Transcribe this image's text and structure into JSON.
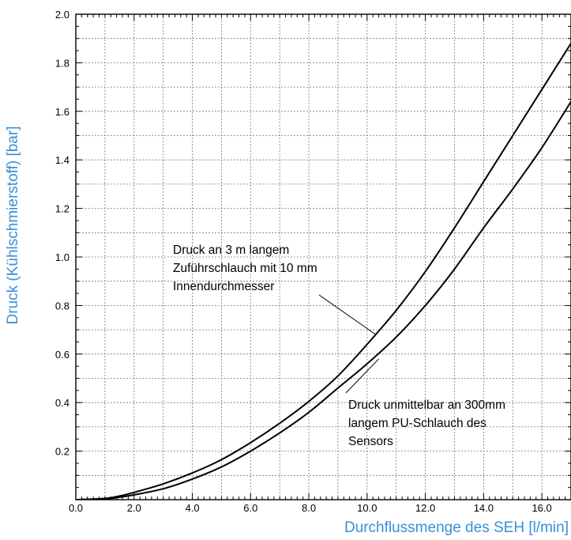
{
  "chart_data": {
    "type": "line",
    "title": "",
    "xlabel": "Durchflussmenge des SEH [l/min]",
    "ylabel": "Druck (Kühlschmierstoff) [bar]",
    "xlim": [
      0,
      17
    ],
    "ylim": [
      0,
      2.0
    ],
    "x_ticks": [
      "0.0",
      "2.0",
      "4.0",
      "6.0",
      "8.0",
      "10.0",
      "12.0",
      "14.0",
      "16.0"
    ],
    "y_ticks": [
      "0.2",
      "0.4",
      "0.6",
      "0.8",
      "1.0",
      "1.2",
      "1.4",
      "1.6",
      "1.8",
      "2.0"
    ],
    "grid": true,
    "series": [
      {
        "x": [
          0,
          1,
          1.5,
          2,
          3,
          4,
          5,
          6,
          7,
          8,
          9,
          10,
          11,
          12,
          13,
          14,
          15,
          16,
          17
        ],
        "values": [
          0,
          0.005,
          0.015,
          0.03,
          0.065,
          0.11,
          0.165,
          0.235,
          0.315,
          0.405,
          0.51,
          0.64,
          0.78,
          0.94,
          1.12,
          1.31,
          1.5,
          1.69,
          1.88
        ]
      },
      {
        "x": [
          0,
          1,
          1.5,
          2,
          3,
          4,
          5,
          6,
          7,
          8,
          9,
          10,
          11,
          12,
          13,
          14,
          15,
          16,
          17
        ],
        "values": [
          0,
          0.003,
          0.01,
          0.02,
          0.045,
          0.085,
          0.135,
          0.2,
          0.275,
          0.36,
          0.46,
          0.56,
          0.67,
          0.8,
          0.95,
          1.12,
          1.28,
          1.45,
          1.64
        ]
      }
    ],
    "annotations": [
      {
        "lines": [
          "Druck an 3 m langem",
          "Zuführschlauch mit 10 mm",
          "Innendurchmesser"
        ],
        "target": [
          10.3,
          0.68
        ]
      },
      {
        "lines": [
          "Druck unmittelbar an 300mm",
          "langem PU-Schlauch des",
          "Sensors"
        ],
        "target": [
          10.4,
          0.58
        ]
      }
    ]
  }
}
